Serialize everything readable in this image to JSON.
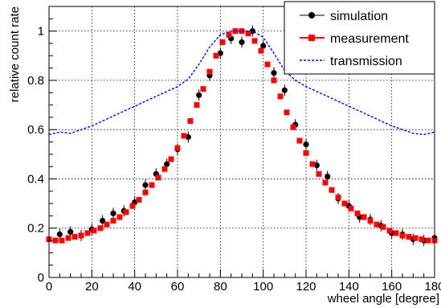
{
  "chart_data": {
    "type": "scatter",
    "xlabel": "wheel angle [degree]",
    "ylabel": "relative count rate",
    "xlim": [
      0,
      180
    ],
    "ylim": [
      0,
      1.1
    ],
    "x_ticks": [
      "0",
      "20",
      "40",
      "60",
      "80",
      "100",
      "120",
      "140",
      "160",
      "180"
    ],
    "y_ticks": [
      "0",
      "0.2",
      "0.4",
      "0.6",
      "0.8",
      "1"
    ],
    "grid": true,
    "legend_position": "top-right",
    "series": [
      {
        "name": "simulation",
        "color": "#000000",
        "marker": "circle",
        "x": [
          0,
          5,
          10,
          15,
          20,
          25,
          30,
          35,
          40,
          45,
          50,
          55,
          60,
          65,
          70,
          75,
          80,
          85,
          90,
          95,
          100,
          105,
          110,
          115,
          120,
          125,
          130,
          135,
          140,
          145,
          150,
          155,
          160,
          165,
          170,
          175,
          180
        ],
        "y": [
          0.155,
          0.175,
          0.185,
          0.17,
          0.195,
          0.23,
          0.26,
          0.27,
          0.305,
          0.375,
          0.42,
          0.46,
          0.52,
          0.57,
          0.74,
          0.82,
          0.91,
          0.97,
          0.955,
          1.0,
          0.94,
          0.83,
          0.76,
          0.62,
          0.54,
          0.455,
          0.41,
          0.32,
          0.29,
          0.245,
          0.235,
          0.21,
          0.18,
          0.175,
          0.155,
          0.15,
          0.16
        ]
      },
      {
        "name": "measurement",
        "color": "#ff0000",
        "marker": "square",
        "x": [
          0,
          3,
          6,
          9,
          12,
          15,
          18,
          21,
          24,
          27,
          30,
          33,
          36,
          39,
          42,
          45,
          48,
          51,
          54,
          57,
          60,
          63,
          66,
          69,
          72,
          75,
          78,
          81,
          84,
          87,
          90,
          93,
          96,
          99,
          102,
          105,
          108,
          111,
          114,
          117,
          120,
          123,
          126,
          129,
          132,
          135,
          138,
          141,
          144,
          147,
          150,
          153,
          156,
          159,
          162,
          165,
          168,
          171,
          174,
          177,
          180
        ],
        "y": [
          0.155,
          0.15,
          0.15,
          0.16,
          0.165,
          0.17,
          0.18,
          0.19,
          0.2,
          0.215,
          0.23,
          0.245,
          0.265,
          0.29,
          0.315,
          0.345,
          0.375,
          0.405,
          0.44,
          0.48,
          0.525,
          0.575,
          0.635,
          0.7,
          0.765,
          0.835,
          0.9,
          0.955,
          0.985,
          1.0,
          1.0,
          0.99,
          0.96,
          0.92,
          0.865,
          0.8,
          0.735,
          0.67,
          0.61,
          0.555,
          0.505,
          0.46,
          0.42,
          0.385,
          0.355,
          0.325,
          0.3,
          0.28,
          0.26,
          0.245,
          0.23,
          0.215,
          0.205,
          0.19,
          0.18,
          0.17,
          0.165,
          0.16,
          0.155,
          0.15,
          0.15
        ]
      },
      {
        "name": "transmission",
        "color": "#0000ff",
        "line": "dashed",
        "x": [
          0,
          5,
          10,
          15,
          20,
          25,
          30,
          35,
          40,
          45,
          50,
          55,
          60,
          65,
          70,
          75,
          80,
          85,
          90,
          95,
          100,
          105,
          110,
          115,
          120,
          125,
          130,
          135,
          140,
          145,
          150,
          155,
          160,
          165,
          170,
          175,
          180
        ],
        "y": [
          0.58,
          0.59,
          0.585,
          0.6,
          0.615,
          0.635,
          0.655,
          0.675,
          0.695,
          0.715,
          0.735,
          0.755,
          0.775,
          0.805,
          0.865,
          0.935,
          0.985,
          1.0,
          1.0,
          1.0,
          0.975,
          0.91,
          0.84,
          0.8,
          0.775,
          0.755,
          0.735,
          0.715,
          0.695,
          0.675,
          0.655,
          0.635,
          0.615,
          0.6,
          0.585,
          0.58,
          0.59
        ]
      }
    ]
  }
}
